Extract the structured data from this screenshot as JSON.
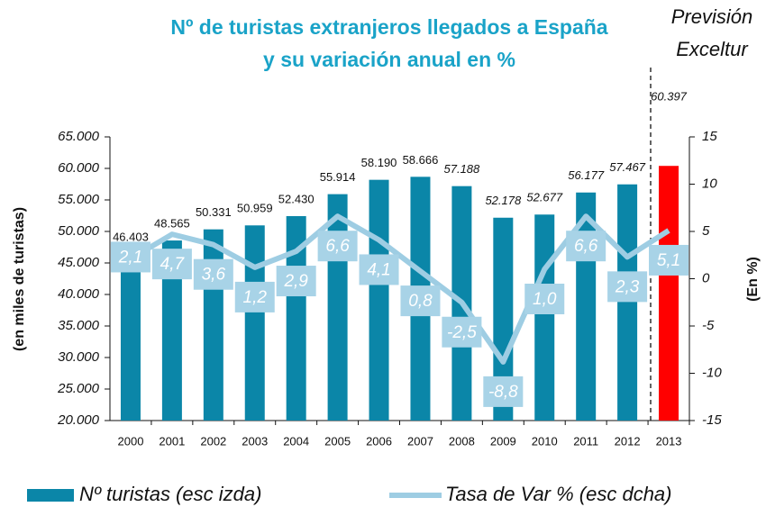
{
  "chart_data": {
    "type": "bar_line",
    "title_lines": [
      "Nº de turistas extranjeros llegados a España",
      "y su variación anual en %"
    ],
    "annotation_lines": [
      "Previsión",
      "Exceltur"
    ],
    "y_label": "(en miles de turistas)",
    "y2_label": "(En %)",
    "categories": [
      "2000",
      "2001",
      "2002",
      "2003",
      "2004",
      "2005",
      "2006",
      "2007",
      "2008",
      "2009",
      "2010",
      "2011",
      "2012",
      "2013"
    ],
    "series": [
      {
        "name": "Nº turistas (esc izda)",
        "type": "bar",
        "color": "#0b86a8",
        "highlight_color": "#ff0000",
        "values": [
          46403,
          48565,
          50331,
          50959,
          52430,
          55914,
          58190,
          58666,
          57188,
          52178,
          52677,
          56177,
          57467,
          60397
        ],
        "value_labels": [
          "46.403",
          "48.565",
          "50.331",
          "50.959",
          "52.430",
          "55.914",
          "58.190",
          "58.666",
          "57.188",
          "52.178",
          "52.677",
          "56.177",
          "57.467",
          "60.397"
        ]
      },
      {
        "name": "Tasa de Var % (esc dcha)",
        "type": "line",
        "axis": "y2",
        "color": "#9ecde3",
        "values": [
          2.1,
          4.7,
          3.6,
          1.2,
          2.9,
          6.6,
          4.1,
          0.8,
          -2.5,
          -8.8,
          1.0,
          6.6,
          2.3,
          5.1
        ],
        "value_labels": [
          "2,1",
          "4,7",
          "3,6",
          "1,2",
          "2,9",
          "6,6",
          "4,1",
          "0,8",
          "-2,5",
          "-8,8",
          "1,0",
          "6,6",
          "2,3",
          "5,1"
        ]
      }
    ],
    "ylim": [
      20000,
      65000
    ],
    "yticks": [
      {
        "value": 20000,
        "label": "20.000"
      },
      {
        "value": 25000,
        "label": "25.000"
      },
      {
        "value": 30000,
        "label": "30.000"
      },
      {
        "value": 35000,
        "label": "35.000"
      },
      {
        "value": 40000,
        "label": "40.000"
      },
      {
        "value": 45000,
        "label": "45.000"
      },
      {
        "value": 50000,
        "label": "50.000"
      },
      {
        "value": 55000,
        "label": "55.000"
      },
      {
        "value": 60000,
        "label": "60.000"
      },
      {
        "value": 65000,
        "label": "65.000"
      }
    ],
    "y2lim": [
      -15,
      15
    ],
    "y2ticks": [
      -15,
      -10,
      -5,
      0,
      5,
      10,
      15
    ]
  }
}
